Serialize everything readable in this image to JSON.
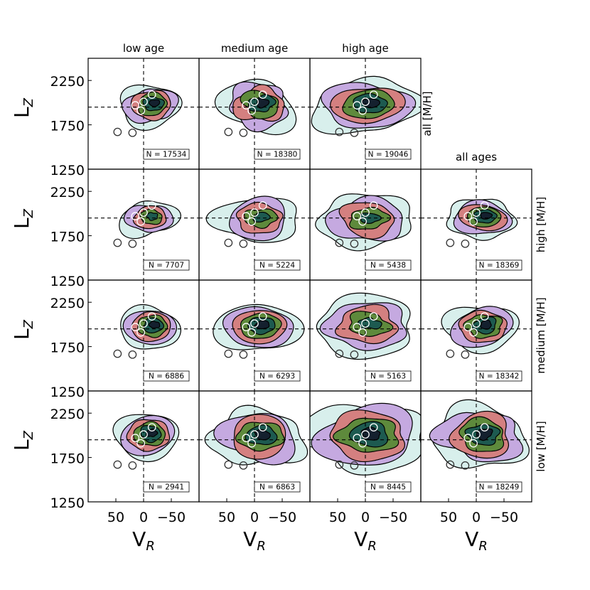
{
  "figure": {
    "column_titles": [
      "low age",
      "medium age",
      "high age",
      "all ages"
    ],
    "row_labels": [
      "all [M/H]",
      "high [M/H]",
      "medium [M/H]",
      "low [M/H]"
    ],
    "y_axis_label": "L",
    "y_axis_subscript": "Z",
    "x_axis_label": "V",
    "x_axis_subscript": "R",
    "y_ticks": [
      "2250",
      "1750",
      "1250"
    ],
    "x_ticks": [
      "50",
      "0",
      "−50"
    ]
  },
  "colors": {
    "outer": "#d8efec",
    "lavender": "#c5a9e0",
    "rose": "#d48080",
    "olive": "#5e8a3c",
    "teal": "#1d5a50",
    "core": "#14202e",
    "frame": "#000000"
  },
  "chart_data": {
    "type": "contour-grid",
    "x_axis": {
      "label": "V_R",
      "range": [
        100,
        -100
      ],
      "ticks": [
        50,
        0,
        -50
      ],
      "reversed": true
    },
    "y_axis": {
      "label": "L_Z",
      "range": [
        1250,
        2500
      ],
      "ticks": [
        1250,
        1750,
        2250
      ]
    },
    "reference_lines": {
      "x": 0,
      "y": 1950
    },
    "grid": false,
    "panels": [
      {
        "row": "all [M/H]",
        "col": "low age",
        "N": "N = 17534",
        "center": [
          -10,
          1960
        ],
        "spread": [
          28,
          130
        ],
        "levels": 6,
        "markers": [
          [
            -15,
            2090
          ],
          [
            0,
            2010
          ],
          [
            15,
            1970
          ],
          [
            5,
            1910
          ],
          [
            47,
            1670
          ],
          [
            20,
            1660
          ]
        ]
      },
      {
        "row": "all [M/H]",
        "col": "medium age",
        "N": "N = 18380",
        "center": [
          -5,
          1960
        ],
        "spread": [
          36,
          150
        ],
        "levels": 6,
        "markers": [
          [
            -15,
            2090
          ],
          [
            0,
            2010
          ],
          [
            15,
            1970
          ],
          [
            5,
            1910
          ],
          [
            47,
            1670
          ],
          [
            20,
            1660
          ]
        ]
      },
      {
        "row": "all [M/H]",
        "col": "high age",
        "N": "N = 19046",
        "center": [
          0,
          1960
        ],
        "spread": [
          48,
          170
        ],
        "levels": 6,
        "markers": [
          [
            -15,
            2090
          ],
          [
            0,
            2010
          ],
          [
            15,
            1970
          ],
          [
            5,
            1910
          ],
          [
            47,
            1670
          ],
          [
            20,
            1660
          ]
        ]
      },
      {
        "row": "high [M/H]",
        "col": "low age",
        "N": "N = 7707",
        "center": [
          -8,
          1940
        ],
        "spread": [
          26,
          110
        ],
        "levels": 5,
        "markers": [
          [
            -15,
            2090
          ],
          [
            0,
            2010
          ],
          [
            15,
            1970
          ],
          [
            5,
            1910
          ],
          [
            47,
            1670
          ],
          [
            20,
            1660
          ]
        ]
      },
      {
        "row": "high [M/H]",
        "col": "medium age",
        "N": "N = 5224",
        "center": [
          -5,
          1930
        ],
        "spread": [
          38,
          140
        ],
        "levels": 5,
        "markers": [
          [
            -15,
            2090
          ],
          [
            0,
            2010
          ],
          [
            15,
            1970
          ],
          [
            5,
            1910
          ],
          [
            47,
            1670
          ],
          [
            20,
            1660
          ]
        ]
      },
      {
        "row": "high [M/H]",
        "col": "high age",
        "N": "N = 5438",
        "center": [
          0,
          1920
        ],
        "spread": [
          45,
          160
        ],
        "levels": 5,
        "markers": [
          [
            -15,
            2090
          ],
          [
            0,
            2010
          ],
          [
            15,
            1970
          ],
          [
            5,
            1910
          ],
          [
            47,
            1670
          ],
          [
            20,
            1660
          ]
        ]
      },
      {
        "row": "high [M/H]",
        "col": "all ages",
        "N": "N = 18369",
        "center": [
          -8,
          1940
        ],
        "spread": [
          32,
          120
        ],
        "levels": 6,
        "markers": [
          [
            -15,
            2090
          ],
          [
            0,
            2010
          ],
          [
            15,
            1970
          ],
          [
            5,
            1910
          ],
          [
            47,
            1670
          ],
          [
            20,
            1660
          ]
        ]
      },
      {
        "row": "medium [M/H]",
        "col": "low age",
        "N": "N = 6886",
        "center": [
          -10,
          1960
        ],
        "spread": [
          28,
          130
        ],
        "levels": 6,
        "markers": [
          [
            -15,
            2090
          ],
          [
            0,
            2010
          ],
          [
            15,
            1970
          ],
          [
            5,
            1910
          ],
          [
            47,
            1670
          ],
          [
            20,
            1660
          ]
        ]
      },
      {
        "row": "medium [M/H]",
        "col": "medium age",
        "N": "N = 6293",
        "center": [
          -5,
          1960
        ],
        "spread": [
          38,
          150
        ],
        "levels": 6,
        "markers": [
          [
            -15,
            2090
          ],
          [
            0,
            2010
          ],
          [
            15,
            1970
          ],
          [
            5,
            1910
          ],
          [
            47,
            1670
          ],
          [
            20,
            1660
          ]
        ]
      },
      {
        "row": "medium [M/H]",
        "col": "high age",
        "N": "N = 5163",
        "center": [
          0,
          1980
        ],
        "spread": [
          50,
          170
        ],
        "levels": 5,
        "markers": [
          [
            -15,
            2090
          ],
          [
            0,
            2010
          ],
          [
            15,
            1970
          ],
          [
            5,
            1910
          ],
          [
            47,
            1670
          ],
          [
            20,
            1660
          ]
        ]
      },
      {
        "row": "medium [M/H]",
        "col": "all ages",
        "N": "N = 18342",
        "center": [
          -8,
          1960
        ],
        "spread": [
          34,
          140
        ],
        "levels": 6,
        "markers": [
          [
            -15,
            2090
          ],
          [
            0,
            2010
          ],
          [
            15,
            1970
          ],
          [
            5,
            1910
          ],
          [
            47,
            1670
          ],
          [
            20,
            1660
          ]
        ]
      },
      {
        "row": "low [M/H]",
        "col": "low age",
        "N": "N = 2941",
        "center": [
          -5,
          1990
        ],
        "spread": [
          30,
          140
        ],
        "levels": 6,
        "markers": [
          [
            -15,
            2090
          ],
          [
            0,
            2010
          ],
          [
            15,
            1970
          ],
          [
            5,
            1910
          ],
          [
            47,
            1670
          ],
          [
            20,
            1660
          ]
        ]
      },
      {
        "row": "low [M/H]",
        "col": "medium age",
        "N": "N = 6863",
        "center": [
          -5,
          1970
        ],
        "spread": [
          44,
          170
        ],
        "levels": 6,
        "markers": [
          [
            -15,
            2090
          ],
          [
            0,
            2010
          ],
          [
            15,
            1970
          ],
          [
            5,
            1910
          ],
          [
            47,
            1670
          ],
          [
            20,
            1660
          ]
        ]
      },
      {
        "row": "low [M/H]",
        "col": "high age",
        "N": "N = 8445",
        "center": [
          0,
          1980
        ],
        "spread": [
          58,
          200
        ],
        "levels": 6,
        "markers": [
          [
            -15,
            2090
          ],
          [
            0,
            2010
          ],
          [
            15,
            1970
          ],
          [
            5,
            1910
          ],
          [
            47,
            1670
          ],
          [
            20,
            1660
          ]
        ]
      },
      {
        "row": "low [M/H]",
        "col": "all ages",
        "N": "N = 18249",
        "center": [
          -5,
          1980
        ],
        "spread": [
          46,
          180
        ],
        "levels": 6,
        "markers": [
          [
            -15,
            2090
          ],
          [
            0,
            2010
          ],
          [
            15,
            1970
          ],
          [
            5,
            1910
          ],
          [
            47,
            1670
          ],
          [
            20,
            1660
          ]
        ]
      }
    ]
  }
}
